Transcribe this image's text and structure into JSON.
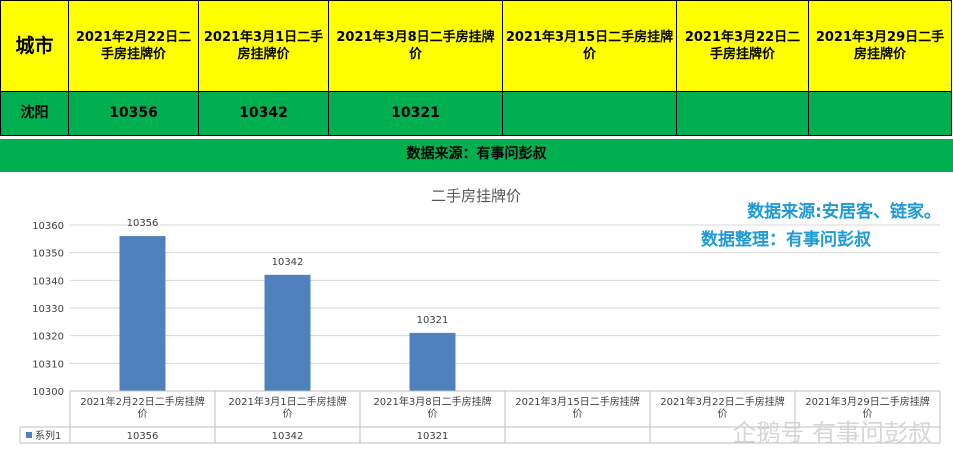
{
  "table": {
    "header_city": "城市",
    "headers": [
      "2021年2月22日二手房挂牌价",
      "2021年3月1日二手房挂牌价",
      "2021年3月8日二手房挂牌价",
      "2021年3月15日二手房挂牌价",
      "2021年3月22日二手房挂牌价",
      "2021年3月29日二手房挂牌价"
    ],
    "row_city": "沈阳",
    "row_values": [
      "10356",
      "10342",
      "10321",
      "",
      "",
      ""
    ]
  },
  "source_bar": "数据来源：有事问彭叔",
  "overlay": {
    "line1": "数据来源:安居客、链家。",
    "line2": "数据整理：有事问彭叔"
  },
  "watermark": "企鹅号 有事问彭叔",
  "colors": {
    "header_bg": "#ffff00",
    "row_bg": "#00b050",
    "bar": "#4f81bd",
    "overlay_text": "#1e9ad6"
  },
  "chart_data": {
    "type": "bar",
    "title": "二手房挂牌价",
    "categories": [
      "2021年2月22日二手房挂牌价",
      "2021年3月1日二手房挂牌价",
      "2021年3月8日二手房挂牌价",
      "2021年3月15日二手房挂牌价",
      "2021年3月22日二手房挂牌价",
      "2021年3月29日二手房挂牌价"
    ],
    "series": [
      {
        "name": "系列1",
        "values": [
          10356,
          10342,
          10321,
          null,
          null,
          null
        ]
      }
    ],
    "data_labels": [
      "10356",
      "10342",
      "10321"
    ],
    "ylim": [
      10300,
      10360
    ],
    "yticks": [
      10300,
      10310,
      10320,
      10330,
      10340,
      10350,
      10360
    ],
    "grid": true,
    "data_table_below": true
  }
}
